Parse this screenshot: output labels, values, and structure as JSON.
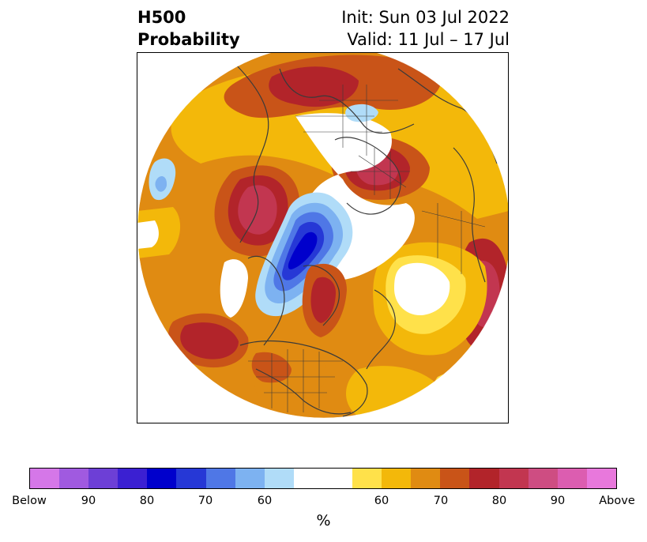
{
  "title": {
    "left_line1": "H500",
    "left_line2": "Probability",
    "right_line1": "Init: Sun 03 Jul 2022",
    "right_line2": "Valid: 11 Jul – 17 Jul"
  },
  "colorbar": {
    "unit": "%",
    "colors": [
      "#d577e8",
      "#a05ae0",
      "#6d3fd6",
      "#3b20d2",
      "#0000cc",
      "#2638d6",
      "#4f77e6",
      "#7db2f1",
      "#b0dcf8",
      "#ffffff",
      "#ffffff",
      "#ffe14a",
      "#f3b80a",
      "#e08b12",
      "#c95418",
      "#b2242a",
      "#c23650",
      "#ce4d82",
      "#dc5db0",
      "#e878dc"
    ],
    "tick_labels": [
      "Below",
      "90",
      "80",
      "70",
      "60",
      "60",
      "70",
      "80",
      "90",
      "Above"
    ]
  },
  "map": {
    "projection": "north-polar-stereographic",
    "content": "H500 probability anomaly shading",
    "colors": {
      "ocean_white": "#ffffff",
      "coast": "#3a3a3a"
    }
  }
}
